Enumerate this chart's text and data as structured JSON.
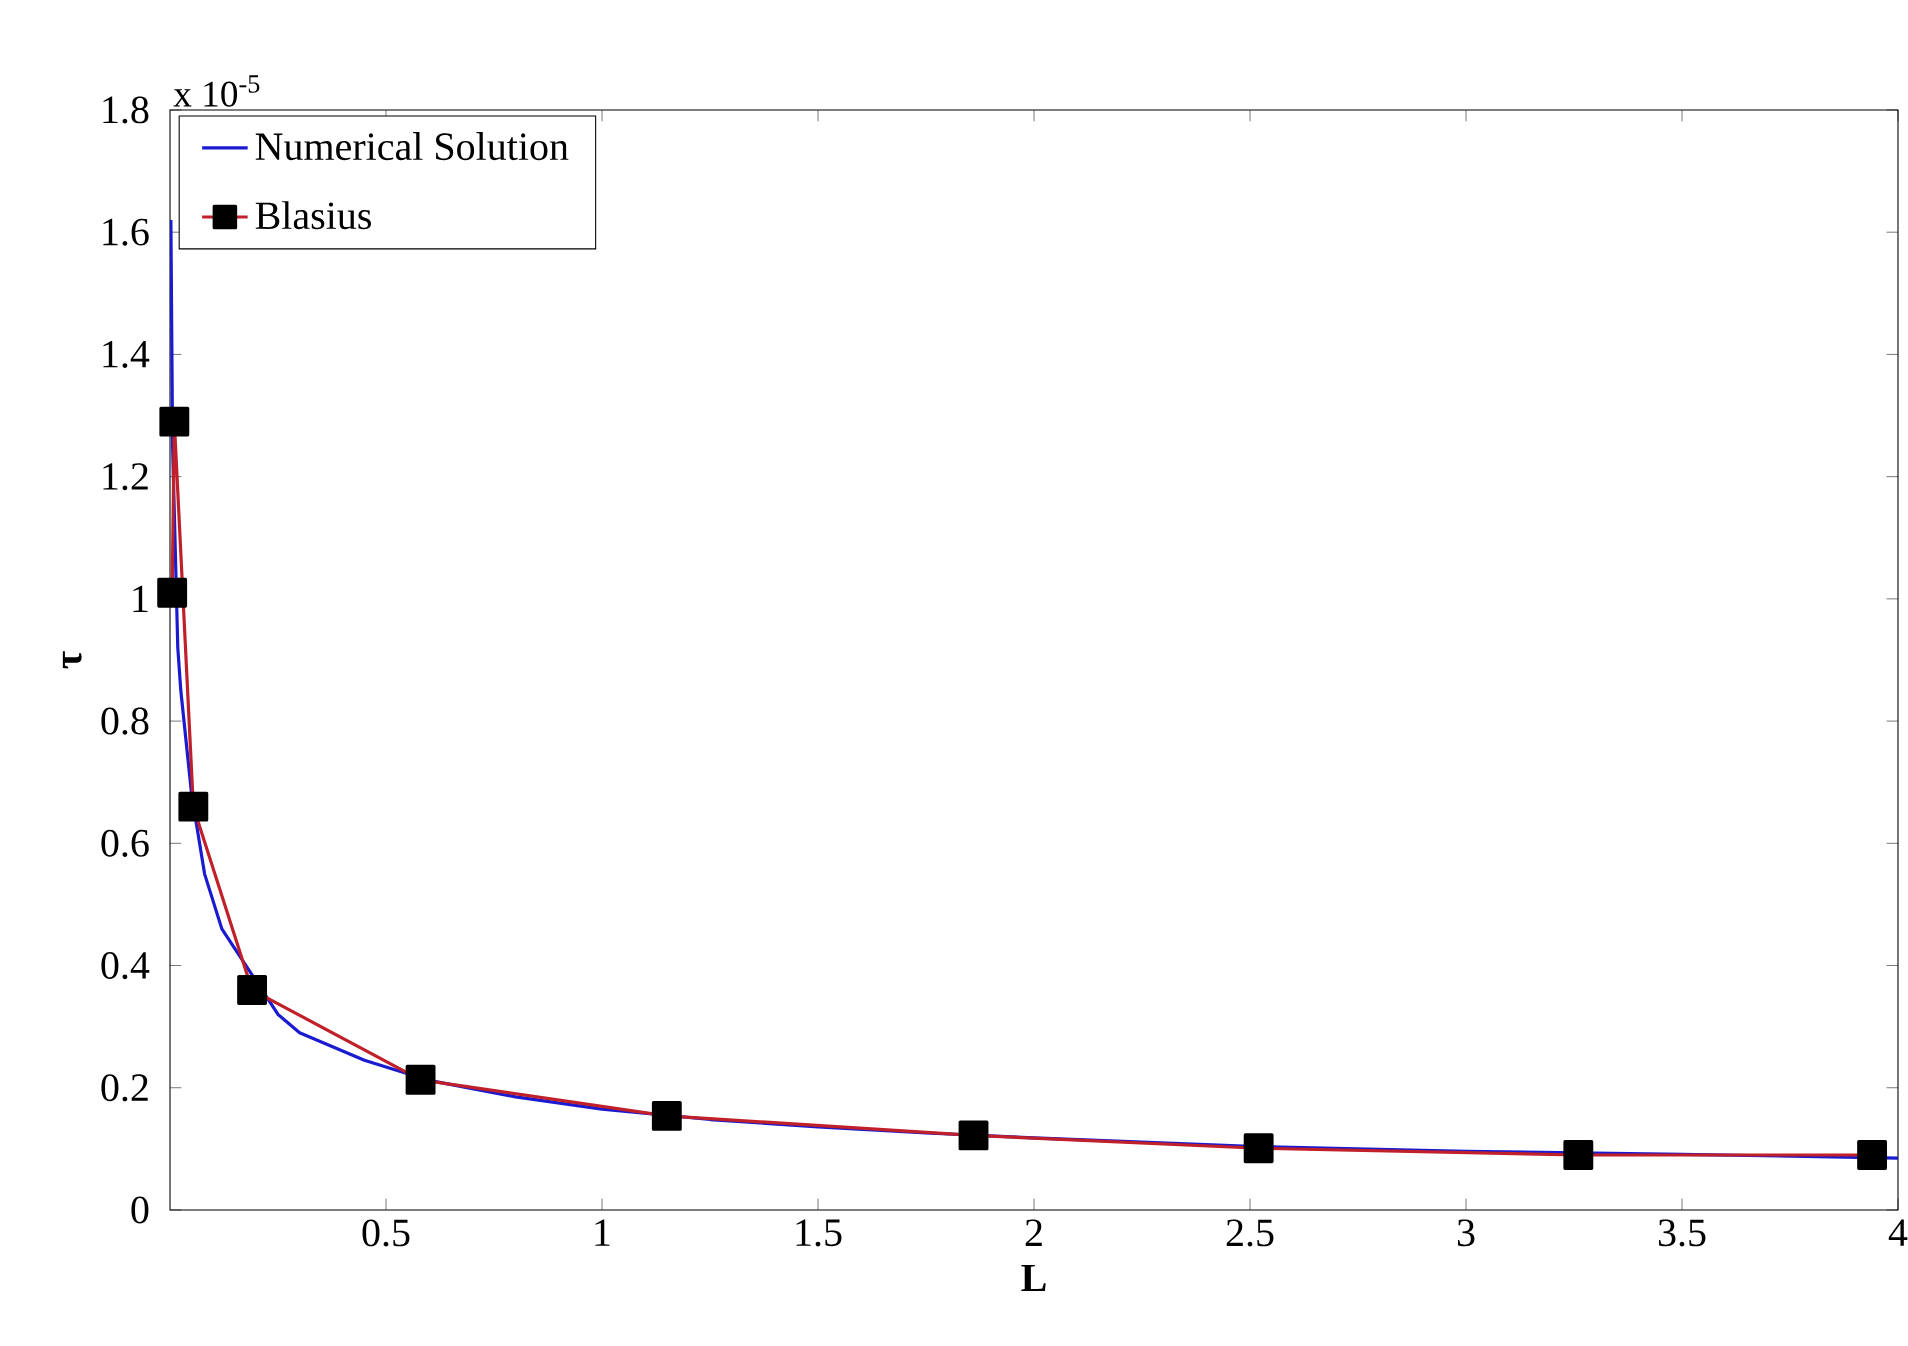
{
  "chart_data": {
    "type": "line",
    "xlabel": "L",
    "ylabel": "τ",
    "annotations": [
      "x 10$^{-5}$"
    ],
    "xlim": [
      0,
      4
    ],
    "ylim": [
      0,
      1.8
    ],
    "xticks": [
      0.5,
      1,
      1.5,
      2,
      2.5,
      3,
      3.5,
      4
    ],
    "yticks": [
      0,
      0.2,
      0.4,
      0.6,
      0.8,
      1,
      1.2,
      1.4,
      1.6,
      1.8
    ],
    "grid": false,
    "legend": "top left",
    "series": [
      {
        "name": "Numerical Solution",
        "color": "#1a1ad0",
        "marker": "none",
        "x": [
          0.002,
          0.006,
          0.018,
          0.025,
          0.05,
          0.08,
          0.12,
          0.25,
          0.3,
          0.45,
          0.6,
          0.8,
          1.0,
          1.25,
          1.5,
          1.75,
          2.0,
          2.5,
          3.0,
          3.5,
          4.0
        ],
        "values": [
          1.62,
          1.25,
          0.92,
          0.85,
          0.68,
          0.55,
          0.46,
          0.32,
          0.29,
          0.245,
          0.212,
          0.185,
          0.165,
          0.148,
          0.136,
          0.126,
          0.118,
          0.104,
          0.096,
          0.091,
          0.085
        ]
      },
      {
        "name": "Blasius",
        "color": "#c0202a",
        "marker": "square",
        "x": [
          0.005,
          0.01,
          0.054,
          0.19,
          0.58,
          1.15,
          1.86,
          2.52,
          3.26,
          3.94
        ],
        "values": [
          1.01,
          1.29,
          0.66,
          0.36,
          0.213,
          0.154,
          0.122,
          0.101,
          0.09,
          0.09
        ]
      }
    ]
  }
}
